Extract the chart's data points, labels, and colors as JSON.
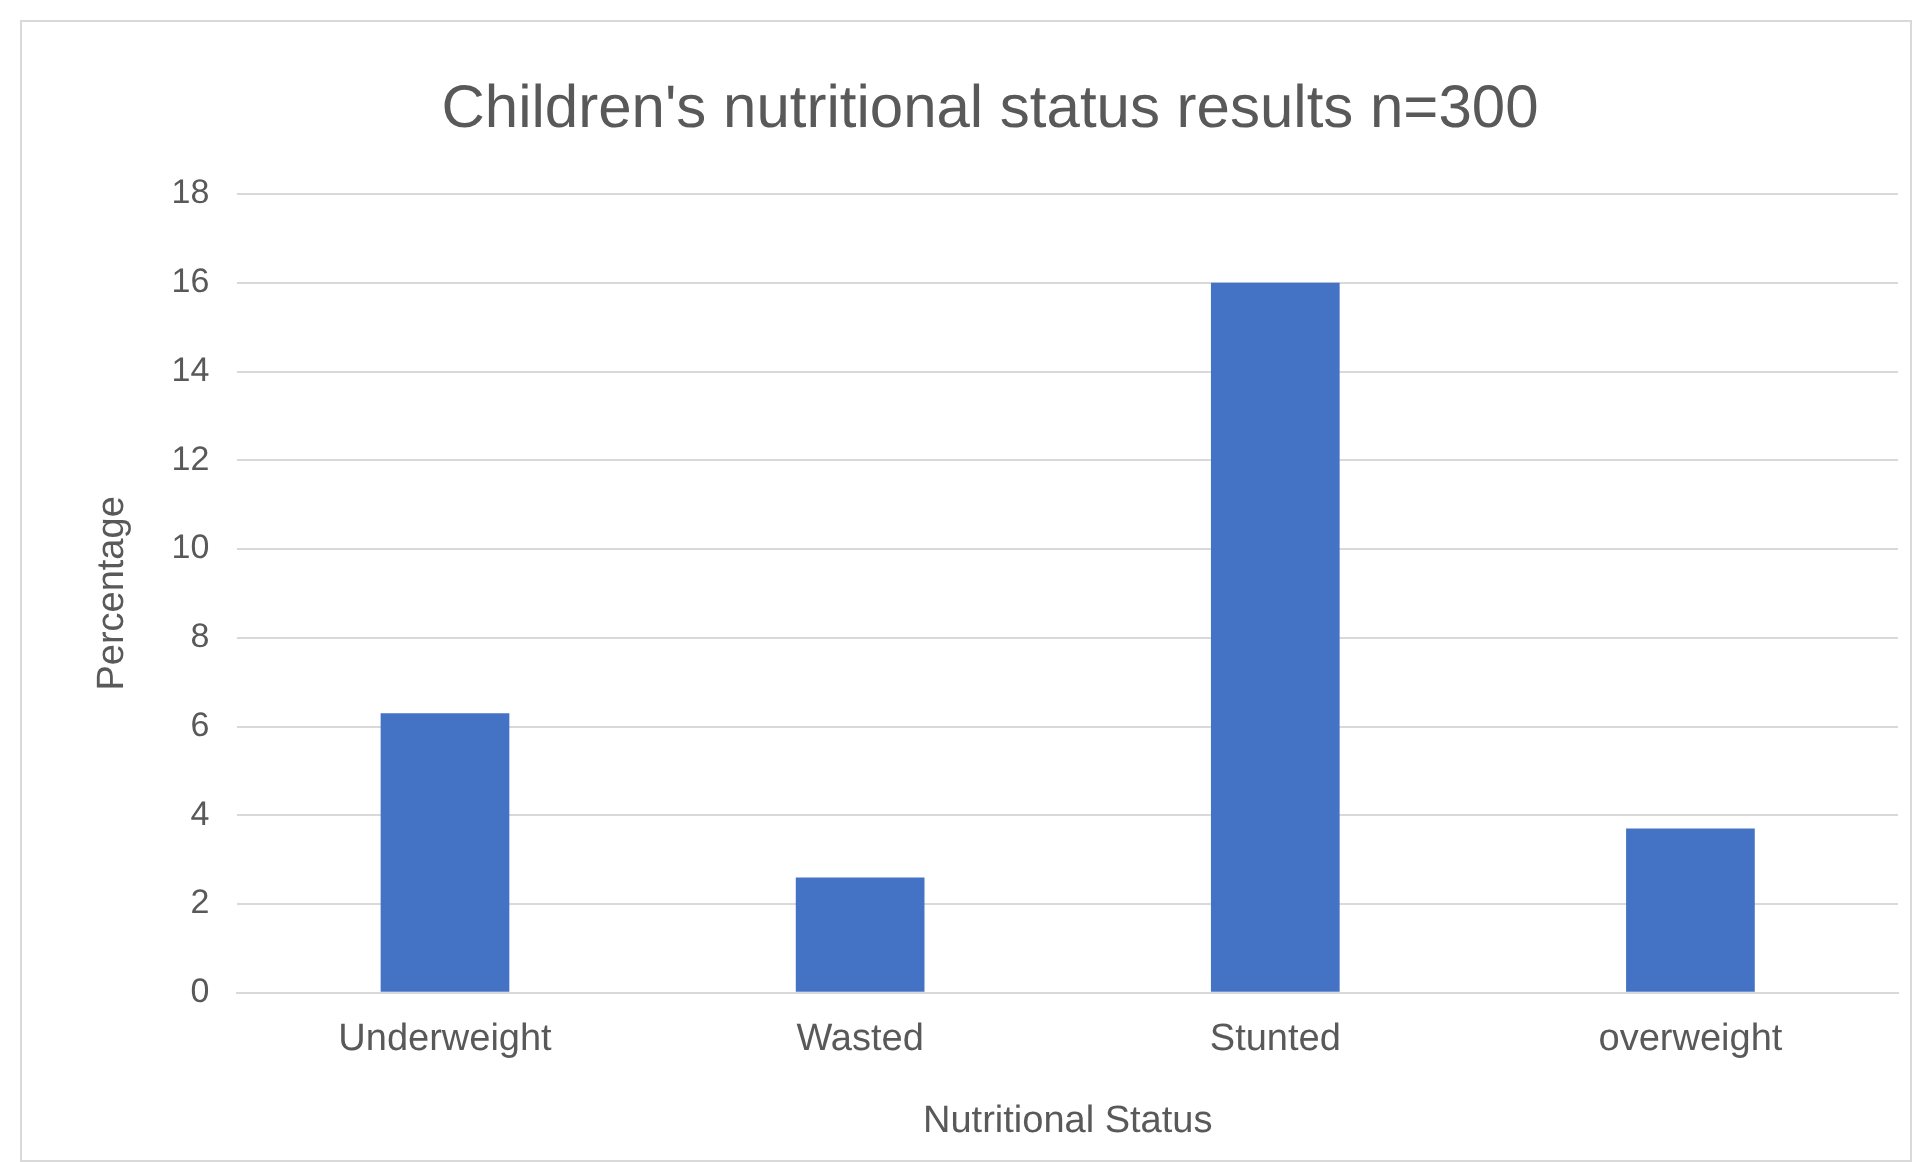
{
  "chart_data": {
    "type": "bar",
    "title": "Children's nutritional status results n=300",
    "xlabel": "Nutritional Status",
    "ylabel": "Percentage",
    "categories": [
      "Underweight",
      "Wasted",
      "Stunted",
      "overweight"
    ],
    "values": [
      6.3,
      2.6,
      16,
      3.7
    ],
    "color": "#4472c4",
    "ylim": [
      0,
      18
    ],
    "yticks": [
      0,
      2,
      4,
      6,
      8,
      10,
      12,
      14,
      16,
      18
    ],
    "grid": "y",
    "legend": false
  }
}
